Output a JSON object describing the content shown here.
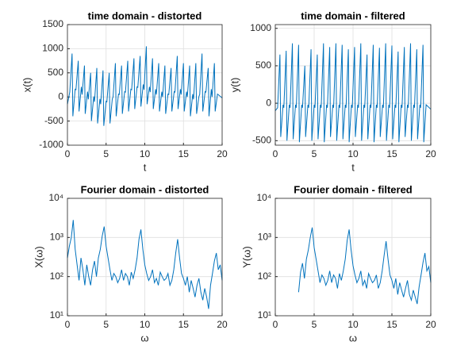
{
  "chart_data": [
    {
      "type": "line",
      "title": "time domain - distorted",
      "xlabel": "t",
      "ylabel": "x(t)",
      "color": "#0072bd",
      "log": false,
      "grid": true,
      "xlim": [
        0,
        20
      ],
      "xticks": [
        0,
        5,
        10,
        15,
        20
      ],
      "ylim": [
        -1000,
        1500
      ],
      "yticks": [
        -1000,
        -500,
        0,
        500,
        1000,
        1500
      ],
      "x": [
        0,
        0.3,
        0.6,
        0.7,
        1.0,
        1.1,
        1.4,
        1.5,
        1.8,
        1.9,
        2.2,
        2.3,
        2.6,
        2.7,
        3.0,
        3.1,
        3.4,
        3.5,
        3.8,
        3.9,
        4.2,
        4.3,
        4.6,
        4.7,
        5.0,
        5.1,
        5.4,
        5.5,
        5.8,
        5.9,
        6.2,
        6.3,
        6.6,
        6.7,
        7.0,
        7.1,
        7.4,
        7.5,
        7.8,
        7.9,
        8.2,
        8.3,
        8.6,
        8.7,
        9.0,
        9.1,
        9.4,
        9.5,
        9.8,
        9.9,
        10.2,
        10.3,
        10.6,
        10.7,
        11.0,
        11.1,
        11.4,
        11.5,
        11.8,
        11.9,
        12.2,
        12.3,
        12.6,
        12.7,
        13.0,
        13.1,
        13.4,
        13.5,
        13.8,
        13.9,
        14.2,
        14.3,
        14.6,
        14.7,
        15.0,
        15.1,
        15.4,
        15.5,
        15.8,
        15.9,
        16.2,
        16.3,
        16.6,
        16.7,
        17.0,
        17.1,
        17.4,
        17.5,
        17.8,
        17.9,
        18.2,
        18.3,
        18.6,
        18.7,
        19.0,
        19.1,
        19.4,
        20
      ],
      "values": [
        -150,
        100,
        900,
        -400,
        160,
        150,
        750,
        -300,
        210,
        50,
        650,
        -350,
        110,
        -50,
        500,
        -500,
        10,
        -100,
        600,
        -550,
        -40,
        -150,
        550,
        -600,
        -90,
        -100,
        500,
        -550,
        -40,
        0,
        700,
        -400,
        60,
        50,
        650,
        -350,
        110,
        100,
        750,
        -300,
        160,
        150,
        800,
        -250,
        210,
        200,
        850,
        -200,
        260,
        150,
        1050,
        -150,
        210,
        100,
        800,
        -250,
        160,
        50,
        700,
        -300,
        110,
        0,
        650,
        -350,
        60,
        50,
        600,
        -300,
        110,
        100,
        850,
        -250,
        160,
        50,
        700,
        -300,
        110,
        0,
        650,
        -400,
        60,
        -50,
        700,
        -350,
        10,
        50,
        900,
        -300,
        110,
        100,
        600,
        -400,
        160,
        0,
        700,
        -300,
        60,
        -20
      ]
    },
    {
      "type": "line",
      "title": "time domain - filtered",
      "xlabel": "t",
      "ylabel": "y(t)",
      "color": "#0072bd",
      "log": false,
      "grid": true,
      "xlim": [
        0,
        20
      ],
      "xticks": [
        0,
        5,
        10,
        15,
        20
      ],
      "ylim": [
        -560,
        1050
      ],
      "yticks": [
        -500,
        0,
        500,
        1000
      ],
      "x": [
        0,
        0.3,
        0.6,
        0.7,
        1.0,
        1.1,
        1.4,
        1.5,
        1.8,
        1.9,
        2.2,
        2.3,
        2.6,
        2.7,
        3.0,
        3.1,
        3.4,
        3.5,
        3.8,
        3.9,
        4.2,
        4.3,
        4.6,
        4.7,
        5.0,
        5.1,
        5.4,
        5.5,
        5.8,
        5.9,
        6.2,
        6.3,
        6.6,
        6.7,
        7.0,
        7.1,
        7.4,
        7.5,
        7.8,
        7.9,
        8.2,
        8.3,
        8.6,
        8.7,
        9.0,
        9.1,
        9.4,
        9.5,
        9.8,
        9.9,
        10.2,
        10.3,
        10.6,
        10.7,
        11.0,
        11.1,
        11.4,
        11.5,
        11.8,
        11.9,
        12.2,
        12.3,
        12.6,
        12.7,
        13.0,
        13.1,
        13.4,
        13.5,
        13.8,
        13.9,
        14.2,
        14.3,
        14.6,
        14.7,
        15.0,
        15.1,
        15.4,
        15.5,
        15.8,
        15.9,
        16.2,
        16.3,
        16.6,
        16.7,
        17.0,
        17.1,
        17.4,
        17.5,
        17.8,
        17.9,
        18.2,
        18.3,
        18.6,
        18.7,
        19.0,
        19.1,
        19.4,
        20
      ],
      "values": [
        -100,
        -60,
        650,
        -450,
        -20,
        -60,
        700,
        -500,
        -20,
        -60,
        800,
        -480,
        -20,
        -60,
        780,
        -520,
        -20,
        -60,
        500,
        -450,
        -20,
        -60,
        720,
        -500,
        -20,
        -60,
        650,
        -480,
        -20,
        -60,
        800,
        -520,
        -20,
        -60,
        750,
        -450,
        -20,
        -60,
        800,
        -500,
        -20,
        -60,
        780,
        -480,
        -20,
        -60,
        720,
        -520,
        -20,
        -60,
        750,
        -450,
        -20,
        -60,
        800,
        -500,
        -20,
        -60,
        650,
        -480,
        -20,
        -60,
        780,
        -520,
        -20,
        -60,
        740,
        -450,
        -20,
        -60,
        800,
        -500,
        -20,
        -60,
        770,
        -480,
        -20,
        -60,
        690,
        -520,
        -20,
        -60,
        750,
        -450,
        -20,
        -60,
        800,
        -500,
        -20,
        -60,
        720,
        -480,
        -20,
        -60,
        780,
        -520,
        -20,
        -80
      ]
    },
    {
      "type": "line",
      "title": "Fourier domain - distorted",
      "xlabel": "ω",
      "ylabel": "X(ω)",
      "color": "#0072bd",
      "log": true,
      "grid": true,
      "xlim": [
        0,
        20
      ],
      "xticks": [
        0,
        5,
        10,
        15,
        20
      ],
      "ylim": [
        10,
        10000
      ],
      "yticks": [
        {
          "value": 10,
          "label": "10¹"
        },
        {
          "value": 100,
          "label": "10²"
        },
        {
          "value": 1000,
          "label": "10³"
        },
        {
          "value": 10000,
          "label": "10⁴"
        }
      ],
      "x": [
        0,
        0.25,
        0.5,
        0.75,
        1,
        1.25,
        1.5,
        1.75,
        2,
        2.25,
        2.5,
        2.75,
        3,
        3.25,
        3.5,
        3.75,
        4,
        4.25,
        4.5,
        4.75,
        5,
        5.25,
        5.5,
        5.75,
        6,
        6.25,
        6.5,
        6.75,
        7,
        7.25,
        7.5,
        7.75,
        8,
        8.25,
        8.5,
        8.75,
        9,
        9.25,
        9.5,
        9.75,
        10,
        10.25,
        10.5,
        10.75,
        11,
        11.25,
        11.5,
        11.75,
        12,
        12.25,
        12.5,
        12.75,
        13,
        13.25,
        13.5,
        13.75,
        14,
        14.25,
        14.5,
        14.75,
        15,
        15.25,
        15.5,
        15.75,
        16,
        16.25,
        16.5,
        16.75,
        17,
        17.25,
        17.5,
        17.75,
        18,
        18.25,
        18.5,
        18.75,
        19,
        19.25,
        19.5,
        19.75,
        20
      ],
      "values": [
        300,
        600,
        1000,
        2800,
        500,
        200,
        80,
        300,
        150,
        60,
        200,
        100,
        60,
        150,
        250,
        100,
        300,
        500,
        1100,
        1900,
        600,
        300,
        150,
        80,
        120,
        100,
        70,
        90,
        150,
        80,
        120,
        100,
        60,
        130,
        90,
        150,
        300,
        900,
        1600,
        500,
        200,
        120,
        80,
        100,
        150,
        70,
        90,
        60,
        130,
        100,
        80,
        90,
        120,
        60,
        80,
        150,
        400,
        900,
        300,
        120,
        90,
        60,
        100,
        40,
        80,
        50,
        30,
        60,
        90,
        40,
        25,
        50,
        30,
        15,
        60,
        120,
        250,
        400,
        150,
        200,
        80
      ]
    },
    {
      "type": "line",
      "title": "Fourier domain - filtered",
      "xlabel": "ω",
      "ylabel": "Y(ω)",
      "color": "#0072bd",
      "log": true,
      "grid": true,
      "xlim": [
        0,
        20
      ],
      "xticks": [
        0,
        5,
        10,
        15,
        20
      ],
      "ylim": [
        10,
        10000
      ],
      "yticks": [
        {
          "value": 10,
          "label": "10¹"
        },
        {
          "value": 100,
          "label": "10²"
        },
        {
          "value": 1000,
          "label": "10³"
        },
        {
          "value": 10000,
          "label": "10⁴"
        }
      ],
      "x": [
        0,
        0.25,
        0.5,
        0.75,
        1,
        1.25,
        1.5,
        1.75,
        2,
        2.25,
        2.5,
        2.75,
        3,
        3.25,
        3.5,
        3.75,
        4,
        4.25,
        4.5,
        4.75,
        5,
        5.25,
        5.5,
        5.75,
        6,
        6.25,
        6.5,
        6.75,
        7,
        7.25,
        7.5,
        7.75,
        8,
        8.25,
        8.5,
        8.75,
        9,
        9.25,
        9.5,
        9.75,
        10,
        10.25,
        10.5,
        10.75,
        11,
        11.25,
        11.5,
        11.75,
        12,
        12.25,
        12.5,
        12.75,
        13,
        13.25,
        13.5,
        13.75,
        14,
        14.25,
        14.5,
        14.75,
        15,
        15.25,
        15.5,
        15.75,
        16,
        16.25,
        16.5,
        16.75,
        17,
        17.25,
        17.5,
        17.75,
        18,
        18.25,
        18.5,
        18.75,
        19,
        19.25,
        19.5,
        19.75,
        20
      ],
      "values": [
        null,
        null,
        null,
        null,
        null,
        null,
        null,
        null,
        null,
        null,
        null,
        null,
        40,
        130,
        220,
        90,
        280,
        480,
        1000,
        1800,
        550,
        280,
        140,
        70,
        110,
        90,
        60,
        80,
        140,
        70,
        110,
        90,
        50,
        120,
        80,
        140,
        280,
        850,
        1600,
        480,
        190,
        110,
        70,
        90,
        140,
        60,
        80,
        50,
        120,
        90,
        70,
        80,
        110,
        50,
        70,
        140,
        350,
        800,
        280,
        110,
        80,
        50,
        90,
        35,
        70,
        45,
        30,
        50,
        80,
        35,
        25,
        45,
        30,
        20,
        55,
        110,
        230,
        400,
        140,
        180,
        70
      ]
    }
  ]
}
